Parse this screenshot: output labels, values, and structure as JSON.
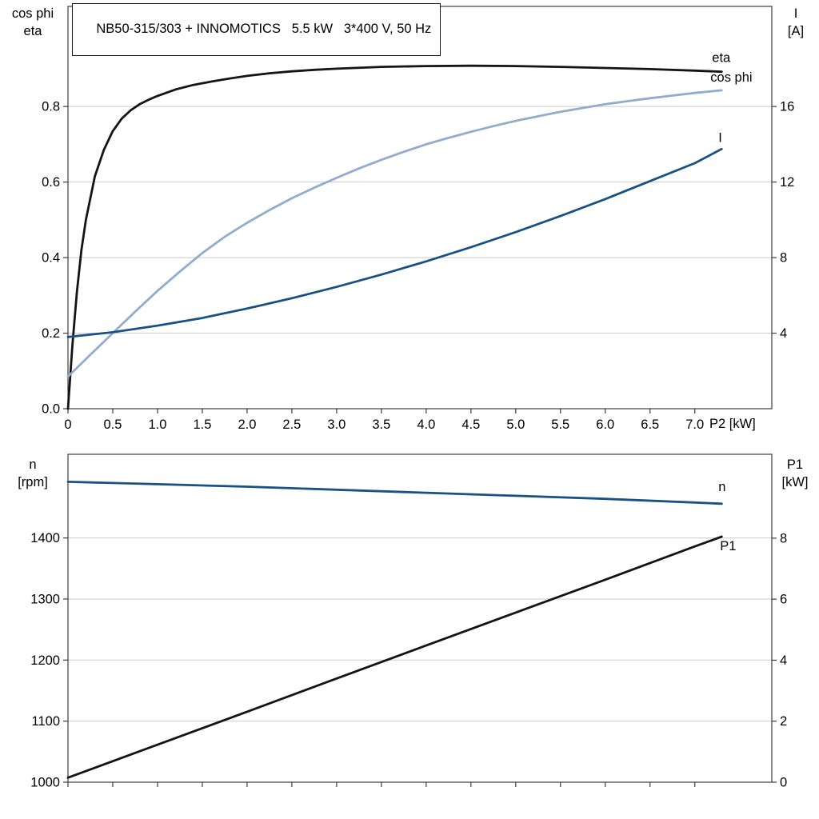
{
  "title_box": "NB50-315/303 + INNOMOTICS   5.5 kW   3*400 V, 50 Hz",
  "colors": {
    "curve_black": "#141414",
    "curve_dark_blue": "#1a5184",
    "curve_light_blue": "#92accc",
    "grid": "#cbcbcb",
    "axis": "#3d3d3d",
    "text": "#000000",
    "background": "#ffffff"
  },
  "chart_data": [
    {
      "type": "line",
      "name": "motor-electrical-curves",
      "x": {
        "label": "P2 [kW]",
        "min": 0,
        "max": 7.86,
        "ticks": [
          0,
          0.5,
          1,
          1.5,
          2,
          2.5,
          3,
          3.5,
          4,
          4.5,
          5,
          5.5,
          6,
          6.5,
          7
        ],
        "tick_labels": [
          "0",
          "0.5",
          "1.0",
          "1.5",
          "2.0",
          "2.5",
          "3.0",
          "3.5",
          "4.0",
          "4.5",
          "5.0",
          "5.5",
          "6.0",
          "6.5",
          "7.0"
        ]
      },
      "y_left": {
        "label_lines": [
          "cos phi",
          "eta"
        ],
        "min": 0,
        "max": 1.065,
        "ticks": [
          0,
          0.2,
          0.4,
          0.6,
          0.8
        ],
        "tick_labels": [
          "0.0",
          "0.2",
          "0.4",
          "0.6",
          "0.8"
        ],
        "grid": true
      },
      "y_right": {
        "label_lines": [
          "I",
          "[A]"
        ],
        "min": 0,
        "max": 21.3,
        "ticks": [
          4,
          8,
          12,
          16
        ],
        "tick_labels": [
          "4",
          "8",
          "12",
          "16"
        ]
      },
      "series": [
        {
          "name": "eta",
          "axis": "left",
          "color": "curve_black",
          "label": {
            "text": "eta",
            "dx": -12,
            "dy": -12
          },
          "points": [
            [
              0,
              0
            ],
            [
              0.05,
              0.17
            ],
            [
              0.1,
              0.31
            ],
            [
              0.15,
              0.42
            ],
            [
              0.2,
              0.5
            ],
            [
              0.3,
              0.615
            ],
            [
              0.4,
              0.685
            ],
            [
              0.5,
              0.735
            ],
            [
              0.6,
              0.768
            ],
            [
              0.7,
              0.79
            ],
            [
              0.8,
              0.806
            ],
            [
              0.9,
              0.818
            ],
            [
              1.0,
              0.828
            ],
            [
              1.2,
              0.845
            ],
            [
              1.4,
              0.857
            ],
            [
              1.6,
              0.866
            ],
            [
              1.8,
              0.874
            ],
            [
              2.0,
              0.881
            ],
            [
              2.25,
              0.888
            ],
            [
              2.5,
              0.893
            ],
            [
              2.75,
              0.897
            ],
            [
              3.0,
              0.9
            ],
            [
              3.5,
              0.905
            ],
            [
              4.0,
              0.907
            ],
            [
              4.5,
              0.908
            ],
            [
              5.0,
              0.907
            ],
            [
              5.5,
              0.905
            ],
            [
              6.0,
              0.902
            ],
            [
              6.5,
              0.899
            ],
            [
              7.0,
              0.895
            ],
            [
              7.3,
              0.892
            ]
          ]
        },
        {
          "name": "cos-phi",
          "axis": "left",
          "color": "curve_light_blue",
          "label": {
            "text": "cos phi",
            "dx": -14,
            "dy": -11
          },
          "points": [
            [
              0,
              0.085
            ],
            [
              0.25,
              0.143
            ],
            [
              0.5,
              0.2
            ],
            [
              0.75,
              0.257
            ],
            [
              1.0,
              0.312
            ],
            [
              1.25,
              0.363
            ],
            [
              1.5,
              0.412
            ],
            [
              1.75,
              0.455
            ],
            [
              2.0,
              0.492
            ],
            [
              2.25,
              0.526
            ],
            [
              2.5,
              0.557
            ],
            [
              2.75,
              0.585
            ],
            [
              3.0,
              0.611
            ],
            [
              3.25,
              0.636
            ],
            [
              3.5,
              0.659
            ],
            [
              3.75,
              0.68
            ],
            [
              4.0,
              0.7
            ],
            [
              4.25,
              0.717
            ],
            [
              4.5,
              0.733
            ],
            [
              4.75,
              0.748
            ],
            [
              5.0,
              0.762
            ],
            [
              5.25,
              0.774
            ],
            [
              5.5,
              0.786
            ],
            [
              5.75,
              0.796
            ],
            [
              6.0,
              0.806
            ],
            [
              6.25,
              0.814
            ],
            [
              6.5,
              0.822
            ],
            [
              6.75,
              0.829
            ],
            [
              7.0,
              0.836
            ],
            [
              7.3,
              0.843
            ]
          ]
        },
        {
          "name": "current-I",
          "axis": "right",
          "color": "curve_dark_blue",
          "label": {
            "text": "I",
            "dx": -4,
            "dy": -9
          },
          "points": [
            [
              0,
              3.8
            ],
            [
              0.5,
              4.05
            ],
            [
              1.0,
              4.4
            ],
            [
              1.5,
              4.8
            ],
            [
              2.0,
              5.3
            ],
            [
              2.5,
              5.85
            ],
            [
              3.0,
              6.45
            ],
            [
              3.5,
              7.1
            ],
            [
              4.0,
              7.8
            ],
            [
              4.5,
              8.55
            ],
            [
              5.0,
              9.35
            ],
            [
              5.5,
              10.2
            ],
            [
              6.0,
              11.1
            ],
            [
              6.5,
              12.05
            ],
            [
              7.0,
              13.0
            ],
            [
              7.3,
              13.75
            ]
          ]
        }
      ]
    },
    {
      "type": "line",
      "name": "motor-speed-power-curves",
      "x": {
        "label": "",
        "min": 0,
        "max": 7.86,
        "ticks": [
          0,
          0.5,
          1,
          1.5,
          2,
          2.5,
          3,
          3.5,
          4,
          4.5,
          5,
          5.5,
          6,
          6.5,
          7
        ],
        "tick_labels": []
      },
      "y_left": {
        "label_lines": [
          "n",
          "[rpm]"
        ],
        "min": 1000,
        "max": 1537,
        "ticks": [
          1000,
          1100,
          1200,
          1300,
          1400
        ],
        "tick_labels": [
          "1000",
          "1100",
          "1200",
          "1300",
          "1400"
        ],
        "grid": true
      },
      "y_right": {
        "label_lines": [
          "P1",
          "[kW]"
        ],
        "min": 0,
        "max": 10.75,
        "ticks": [
          0,
          2,
          4,
          6,
          8
        ],
        "tick_labels": [
          "0",
          "2",
          "4",
          "6",
          "8"
        ]
      },
      "series": [
        {
          "name": "speed-n",
          "axis": "left",
          "color": "curve_dark_blue",
          "label": {
            "text": "n",
            "dx": -4,
            "dy": -16
          },
          "points": [
            [
              0,
              1492
            ],
            [
              1,
              1488
            ],
            [
              2,
              1484
            ],
            [
              3,
              1479
            ],
            [
              4,
              1474
            ],
            [
              5,
              1469
            ],
            [
              6,
              1464
            ],
            [
              7,
              1458
            ],
            [
              7.3,
              1456
            ]
          ]
        },
        {
          "name": "input-power-P1",
          "axis": "right",
          "color": "curve_black",
          "label": {
            "text": "P1",
            "dx": -2,
            "dy": 17
          },
          "points": [
            [
              0,
              0.15
            ],
            [
              1,
              1.23
            ],
            [
              2,
              2.31
            ],
            [
              3,
              3.4
            ],
            [
              4,
              4.48
            ],
            [
              5,
              5.56
            ],
            [
              6,
              6.64
            ],
            [
              7,
              7.73
            ],
            [
              7.3,
              8.05
            ]
          ]
        }
      ]
    }
  ]
}
